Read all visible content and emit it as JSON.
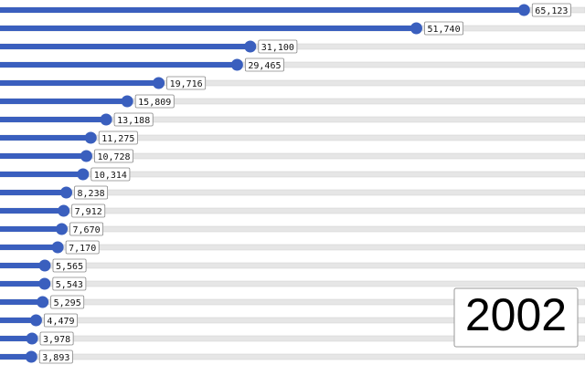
{
  "chart_data": {
    "type": "lollipop",
    "orientation": "horizontal",
    "categories": [
      null,
      null,
      null,
      null,
      null,
      null,
      null,
      null,
      null,
      null,
      null,
      null,
      null,
      null,
      null,
      null,
      null,
      null,
      null,
      null
    ],
    "values": [
      65123,
      51740,
      31100,
      29465,
      19716,
      15809,
      13188,
      11275,
      10728,
      10314,
      8238,
      7912,
      7670,
      7170,
      5565,
      5543,
      5295,
      4479,
      3978,
      3893
    ],
    "value_labels": [
      "65,123",
      "51,740",
      "31,100",
      "29,465",
      "19,716",
      "15,809",
      "13,188",
      "11,275",
      "10,728",
      "10,314",
      "8,238",
      "7,912",
      "7,670",
      "7,170",
      "5,565",
      "5,543",
      "5,295",
      "4,479",
      "3,978",
      "3,893"
    ],
    "color": "#3a5fbe",
    "xlim": [
      0,
      72700
    ],
    "annotation": "2002"
  }
}
